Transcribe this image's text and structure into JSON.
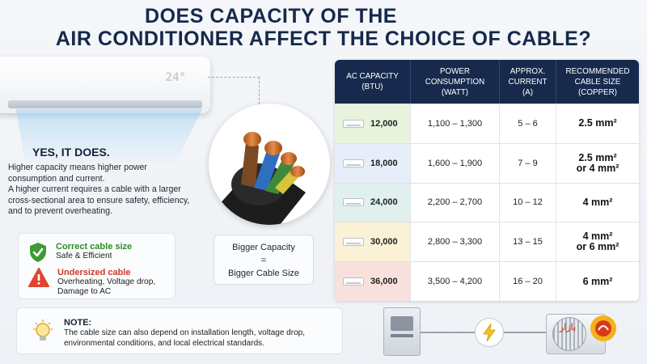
{
  "title": {
    "line1": "DOES CAPACITY OF THE",
    "line2": "AIR CONDITIONER AFFECT THE CHOICE OF CABLE?"
  },
  "ac_display": "24°",
  "answer": {
    "heading": "YES, IT DOES.",
    "para1": "Higher capacity means higher power consumption and current.",
    "para2": "A higher current requires a cable with a larger cross-sectional area to ensure safety, efficiency, and to prevent overheating."
  },
  "status": {
    "correct": {
      "title": "Correct cable size",
      "desc": "Safe & Efficient",
      "color": "#2f8a2a"
    },
    "undersized": {
      "title": "Undersized cable",
      "desc_line1": "Overheating, Voltage drop,",
      "desc_line2": "Damage to AC",
      "color": "#d0392a"
    }
  },
  "bigger": {
    "line1": "Bigger Capacity",
    "line2": "=",
    "line3": "Bigger Cable Size"
  },
  "note": {
    "title": "NOTE:",
    "text": "The cable size can also depend on installation length, voltage drop, environmental conditions, and local electrical standards."
  },
  "table": {
    "headers": {
      "c1a": "AC CAPACITY",
      "c1b": "(BTU)",
      "c2a": "POWER",
      "c2b": "CONSUMPTION",
      "c2c": "(WATT)",
      "c3a": "APPROX.",
      "c3b": "CURRENT",
      "c3c": "(A)",
      "c4a": "RECOMMENDED",
      "c4b": "CABLE SIZE",
      "c4c": "(COPPER)"
    },
    "rows": [
      {
        "btu": "12,000",
        "watt": "1,100 – 1,300",
        "amp": "5 – 6",
        "size1": "2.5 mm²",
        "size2": "",
        "bg": "#e8f3de"
      },
      {
        "btu": "18,000",
        "watt": "1,600 – 1,900",
        "amp": "7 – 9",
        "size1": "2.5 mm²",
        "size2": "or 4 mm²",
        "bg": "#e6eef9"
      },
      {
        "btu": "24,000",
        "watt": "2,200 – 2,700",
        "amp": "10 – 12",
        "size1": "4 mm²",
        "size2": "",
        "bg": "#dff0ee"
      },
      {
        "btu": "30,000",
        "watt": "2,800 – 3,300",
        "amp": "13 – 15",
        "size1": "4 mm²",
        "size2": "or 6 mm²",
        "bg": "#fbf1d6"
      },
      {
        "btu": "36,000",
        "watt": "3,500 – 4,200",
        "amp": "16 – 20",
        "size1": "6 mm²",
        "size2": "",
        "bg": "#f8e1dd"
      }
    ]
  },
  "watermark": "بازار"
}
